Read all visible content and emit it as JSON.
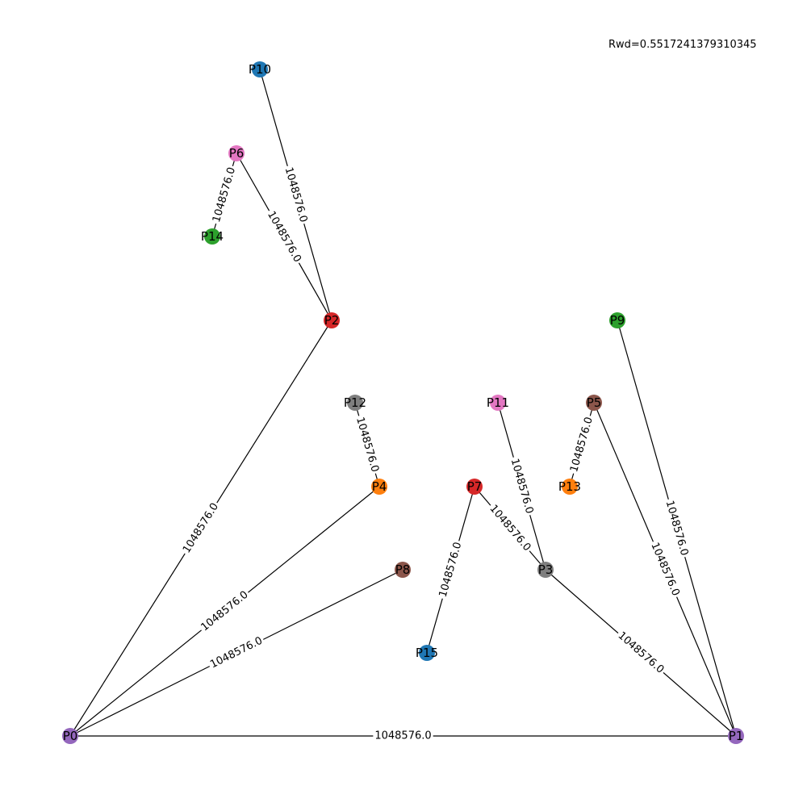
{
  "reward_text": "Rwd=0.5517241379310345",
  "graph": {
    "nodes": [
      {
        "id": "P0",
        "color": "#9467bd"
      },
      {
        "id": "P1",
        "color": "#9467bd"
      },
      {
        "id": "P2",
        "color": "#d62728"
      },
      {
        "id": "P3",
        "color": "#7f7f7f"
      },
      {
        "id": "P4",
        "color": "#ff7f0e"
      },
      {
        "id": "P5",
        "color": "#8c564b"
      },
      {
        "id": "P6",
        "color": "#e377c2"
      },
      {
        "id": "P7",
        "color": "#d62728"
      },
      {
        "id": "P8",
        "color": "#8c564b"
      },
      {
        "id": "P9",
        "color": "#2ca02c"
      },
      {
        "id": "P10",
        "color": "#1f77b4"
      },
      {
        "id": "P11",
        "color": "#e377c2"
      },
      {
        "id": "P12",
        "color": "#7f7f7f"
      },
      {
        "id": "P13",
        "color": "#ff7f0e"
      },
      {
        "id": "P14",
        "color": "#2ca02c"
      },
      {
        "id": "P15",
        "color": "#1f77b4"
      }
    ],
    "edges": [
      {
        "source": "P0",
        "target": "P1",
        "label": "1048576.0"
      },
      {
        "source": "P0",
        "target": "P2",
        "label": "1048576.0"
      },
      {
        "source": "P0",
        "target": "P4",
        "label": "1048576.0"
      },
      {
        "source": "P0",
        "target": "P8",
        "label": "1048576.0"
      },
      {
        "source": "P2",
        "target": "P10",
        "label": "1048576.0"
      },
      {
        "source": "P2",
        "target": "P6",
        "label": "1048576.0"
      },
      {
        "source": "P6",
        "target": "P14",
        "label": "1048576.0"
      },
      {
        "source": "P12",
        "target": "P4",
        "label": "1048576.0"
      },
      {
        "source": "P11",
        "target": "P3",
        "label": "1048576.0"
      },
      {
        "source": "P7",
        "target": "P3",
        "label": "1048576.0"
      },
      {
        "source": "P7",
        "target": "P15",
        "label": "1048576.0"
      },
      {
        "source": "P5",
        "target": "P13",
        "label": "1048576.0"
      },
      {
        "source": "P3",
        "target": "P1",
        "label": "1048576.0"
      },
      {
        "source": "P5",
        "target": "P1",
        "label": "1048576.0"
      },
      {
        "source": "P9",
        "target": "P1",
        "label": "1048576.0"
      }
    ]
  }
}
